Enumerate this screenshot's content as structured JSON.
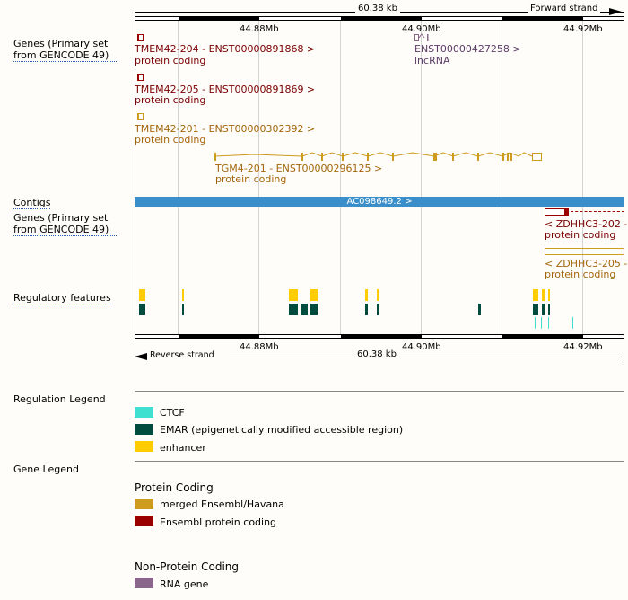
{
  "scale": {
    "length": "60.38 kb",
    "forward_strand": "Forward strand",
    "reverse_strand": "Reverse strand",
    "ticks": [
      "44.88Mb",
      "44.90Mb",
      "44.92Mb"
    ]
  },
  "tracks": {
    "genes_top": {
      "label": "Genes (Primary set from GENCODE 49)",
      "transcripts": [
        {
          "name": "TMEM42-204 - ENST00000891868 >",
          "biotype": "protein coding"
        },
        {
          "name": "TMEM42-205 - ENST00000891869 >",
          "biotype": "protein coding"
        },
        {
          "name": "TMEM42-201 - ENST00000302392 >",
          "biotype": "protein coding"
        },
        {
          "name": "ENST00000427258 >",
          "biotype": "lncRNA"
        },
        {
          "name": "TGM4-201 - ENST00000296125 >",
          "biotype": "protein coding"
        }
      ]
    },
    "contigs": {
      "label": "Contigs",
      "name": "AC098649.2 >"
    },
    "genes_bottom": {
      "label": "Genes (Primary set from GENCODE 49)",
      "transcripts": [
        {
          "name": "< ZDHHC3-202 - E",
          "biotype": "protein coding"
        },
        {
          "name": "< ZDHHC3-205 - E",
          "biotype": "protein coding"
        }
      ]
    },
    "regulatory": {
      "label": "Regulatory features"
    }
  },
  "regulation_legend": {
    "title": "Regulation Legend",
    "items": [
      {
        "label": "CTCF",
        "color": "#40e0d0"
      },
      {
        "label": "EMAR (epigenetically modified accessible region)",
        "color": "#004d40"
      },
      {
        "label": "enhancer",
        "color": "#ffcc00"
      }
    ]
  },
  "gene_legend": {
    "title": "Gene Legend",
    "protein_coding": {
      "title": "Protein Coding",
      "items": [
        {
          "label": "merged Ensembl/Havana",
          "color": "#cd9b1d"
        },
        {
          "label": "Ensembl protein coding",
          "color": "#9a0000"
        }
      ]
    },
    "non_protein_coding": {
      "title": "Non-Protein Coding",
      "items": [
        {
          "label": "RNA gene",
          "color": "#8b668b"
        }
      ]
    }
  }
}
